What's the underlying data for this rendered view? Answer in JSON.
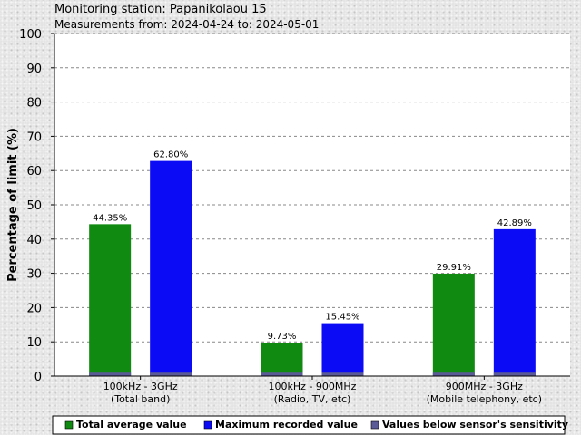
{
  "header": {
    "title": "Monitoring station: Papanikolaou 15",
    "subtitle": "Measurements from: 2024-04-24 to: 2024-05-01"
  },
  "colors": {
    "average": "#118a11",
    "maximum": "#0b0bf5",
    "below_sensitivity": "#5a5a96",
    "grid": "#888888",
    "plot_bg": "#ffffff"
  },
  "chart_data": {
    "type": "bar",
    "ylabel": "Percentage of limit (%)",
    "xlabel": "",
    "ylim": [
      0,
      100
    ],
    "yticks": [
      0,
      10,
      20,
      30,
      40,
      50,
      60,
      70,
      80,
      90,
      100
    ],
    "grid": true,
    "legend_position": "bottom",
    "categories": [
      {
        "line1": "100kHz - 3GHz",
        "line2": "(Total band)"
      },
      {
        "line1": "100kHz - 900MHz",
        "line2": "(Radio, TV, etc)"
      },
      {
        "line1": "900MHz - 3GHz",
        "line2": "(Mobile telephony, etc)"
      }
    ],
    "series": [
      {
        "name": "Total average value",
        "values": [
          44.35,
          9.73,
          29.91
        ],
        "labels": [
          "44.35%",
          "9.73%",
          "29.91%"
        ]
      },
      {
        "name": "Maximum recorded value",
        "values": [
          62.8,
          15.45,
          42.89
        ],
        "labels": [
          "62.80%",
          "15.45%",
          "42.89%"
        ]
      },
      {
        "name": "Values below sensor's sensitivity",
        "values": [
          1,
          1,
          1
        ]
      }
    ]
  }
}
